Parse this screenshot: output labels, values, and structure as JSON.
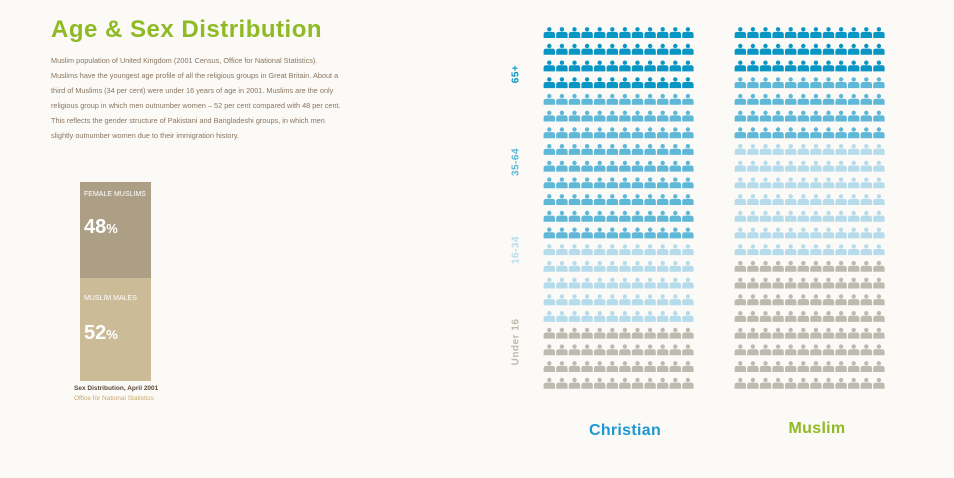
{
  "title": "Age & Sex Distribution",
  "description": "Muslim population of United Kingdom (2001 Census, Office for National Statistics). Muslims have the youngest age profile of all the religious groups in Great Britain. About a third of Muslims (34 per cent) were under 16 years of age in 2001. Muslims are the only religious group in which men outnumber women – 52 per cent compared with 48 per cent. This reflects the gender structure of Pakistani and Bangladeshi groups, in which men slightly outnumber women due to their immigration history.",
  "sex_bar": {
    "female_label": "FEMALE MUSLIMS",
    "female_pct": "48",
    "male_label": "MUSLIM MALES",
    "male_pct": "52",
    "pct_symbol": "%",
    "source_title": "Sex Distribution, April 2001",
    "source_org": "Office for National Statistics"
  },
  "age_labels": [
    "65+",
    "35-64",
    "16-34",
    "Under 16"
  ],
  "categories": [
    "Christian",
    "Muslim"
  ],
  "colors": {
    "title": "#8fba24",
    "para": "#8a7560",
    "female": "#ad9f86",
    "male": "#cbbb97",
    "source_org": "#c8a870",
    "age_65": "#0a96c4",
    "age_35_64": "#5fb8d8",
    "age_16_34": "#b6dcec",
    "age_under16": "#bdbab0",
    "christian": "#1e96cf",
    "muslim": "#8fba24"
  },
  "chart_data": [
    {
      "type": "bar",
      "title": "Sex Distribution, April 2001",
      "categories": [
        "FEMALE MUSLIMS",
        "MUSLIM MALES"
      ],
      "values": [
        48,
        52
      ],
      "unit": "%"
    },
    {
      "type": "table",
      "note": "Pictogram of age distribution, each column = 22 rows of 12 figures",
      "categories": [
        "Christian",
        "Muslim"
      ],
      "age_groups": [
        "Under 16",
        "16-34",
        "35-64",
        "65+"
      ],
      "series": [
        {
          "name": "Christian",
          "rows": {
            "Under 16": 4,
            "16-34": 5,
            "35-64": 9,
            "65+": 4
          }
        },
        {
          "name": "Muslim",
          "rows": {
            "Under 16": 8,
            "16-34": 7,
            "35-64": 4,
            "65+": 3
          }
        }
      ],
      "rows_per_column": 22,
      "icons_per_row": 12
    }
  ]
}
